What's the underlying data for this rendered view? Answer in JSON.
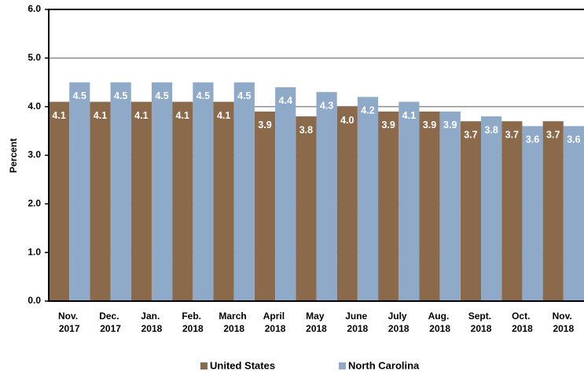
{
  "chart_data": {
    "type": "bar",
    "y_label": "Percent",
    "categories": [
      "Nov. 2017",
      "Dec. 2017",
      "Jan. 2018",
      "Feb. 2018",
      "March 2018",
      "April 2018",
      "May 2018",
      "June 2018",
      "July 2018",
      "Aug. 2018",
      "Sept. 2018",
      "Oct. 2018",
      "Nov. 2018"
    ],
    "series": [
      {
        "name": "United States",
        "color": "#8b6a4b",
        "values": [
          4.1,
          4.1,
          4.1,
          4.1,
          4.1,
          3.9,
          3.8,
          4.0,
          3.9,
          3.9,
          3.7,
          3.7,
          3.7
        ],
        "value_labels": [
          "4.1",
          "4.1",
          "4.1",
          "4.1",
          "4.1",
          "3.9",
          "3.8",
          "4.0",
          "3.9",
          "3.9",
          "3.7",
          "3.7",
          "3.7"
        ]
      },
      {
        "name": "North Carolina",
        "color": "#8eaac8",
        "values": [
          4.5,
          4.5,
          4.5,
          4.5,
          4.5,
          4.4,
          4.3,
          4.2,
          4.1,
          3.9,
          3.8,
          3.6,
          3.6
        ],
        "value_labels": [
          "4.5",
          "4.5",
          "4.5",
          "4.5",
          "4.5",
          "4.4",
          "4.3",
          "4.2",
          "4.1",
          "3.9",
          "3.8",
          "3.6",
          "3.6"
        ]
      }
    ],
    "ylim": [
      0,
      6
    ],
    "yticks": [
      {
        "value": 0,
        "label": "0.0"
      },
      {
        "value": 1,
        "label": "1.0"
      },
      {
        "value": 2,
        "label": "2.0"
      },
      {
        "value": 3,
        "label": "3.0"
      },
      {
        "value": 4,
        "label": "4.0"
      },
      {
        "value": 5,
        "label": "5.0"
      },
      {
        "value": 6,
        "label": "6.0"
      }
    ],
    "grid": true,
    "legend": "bottom"
  }
}
